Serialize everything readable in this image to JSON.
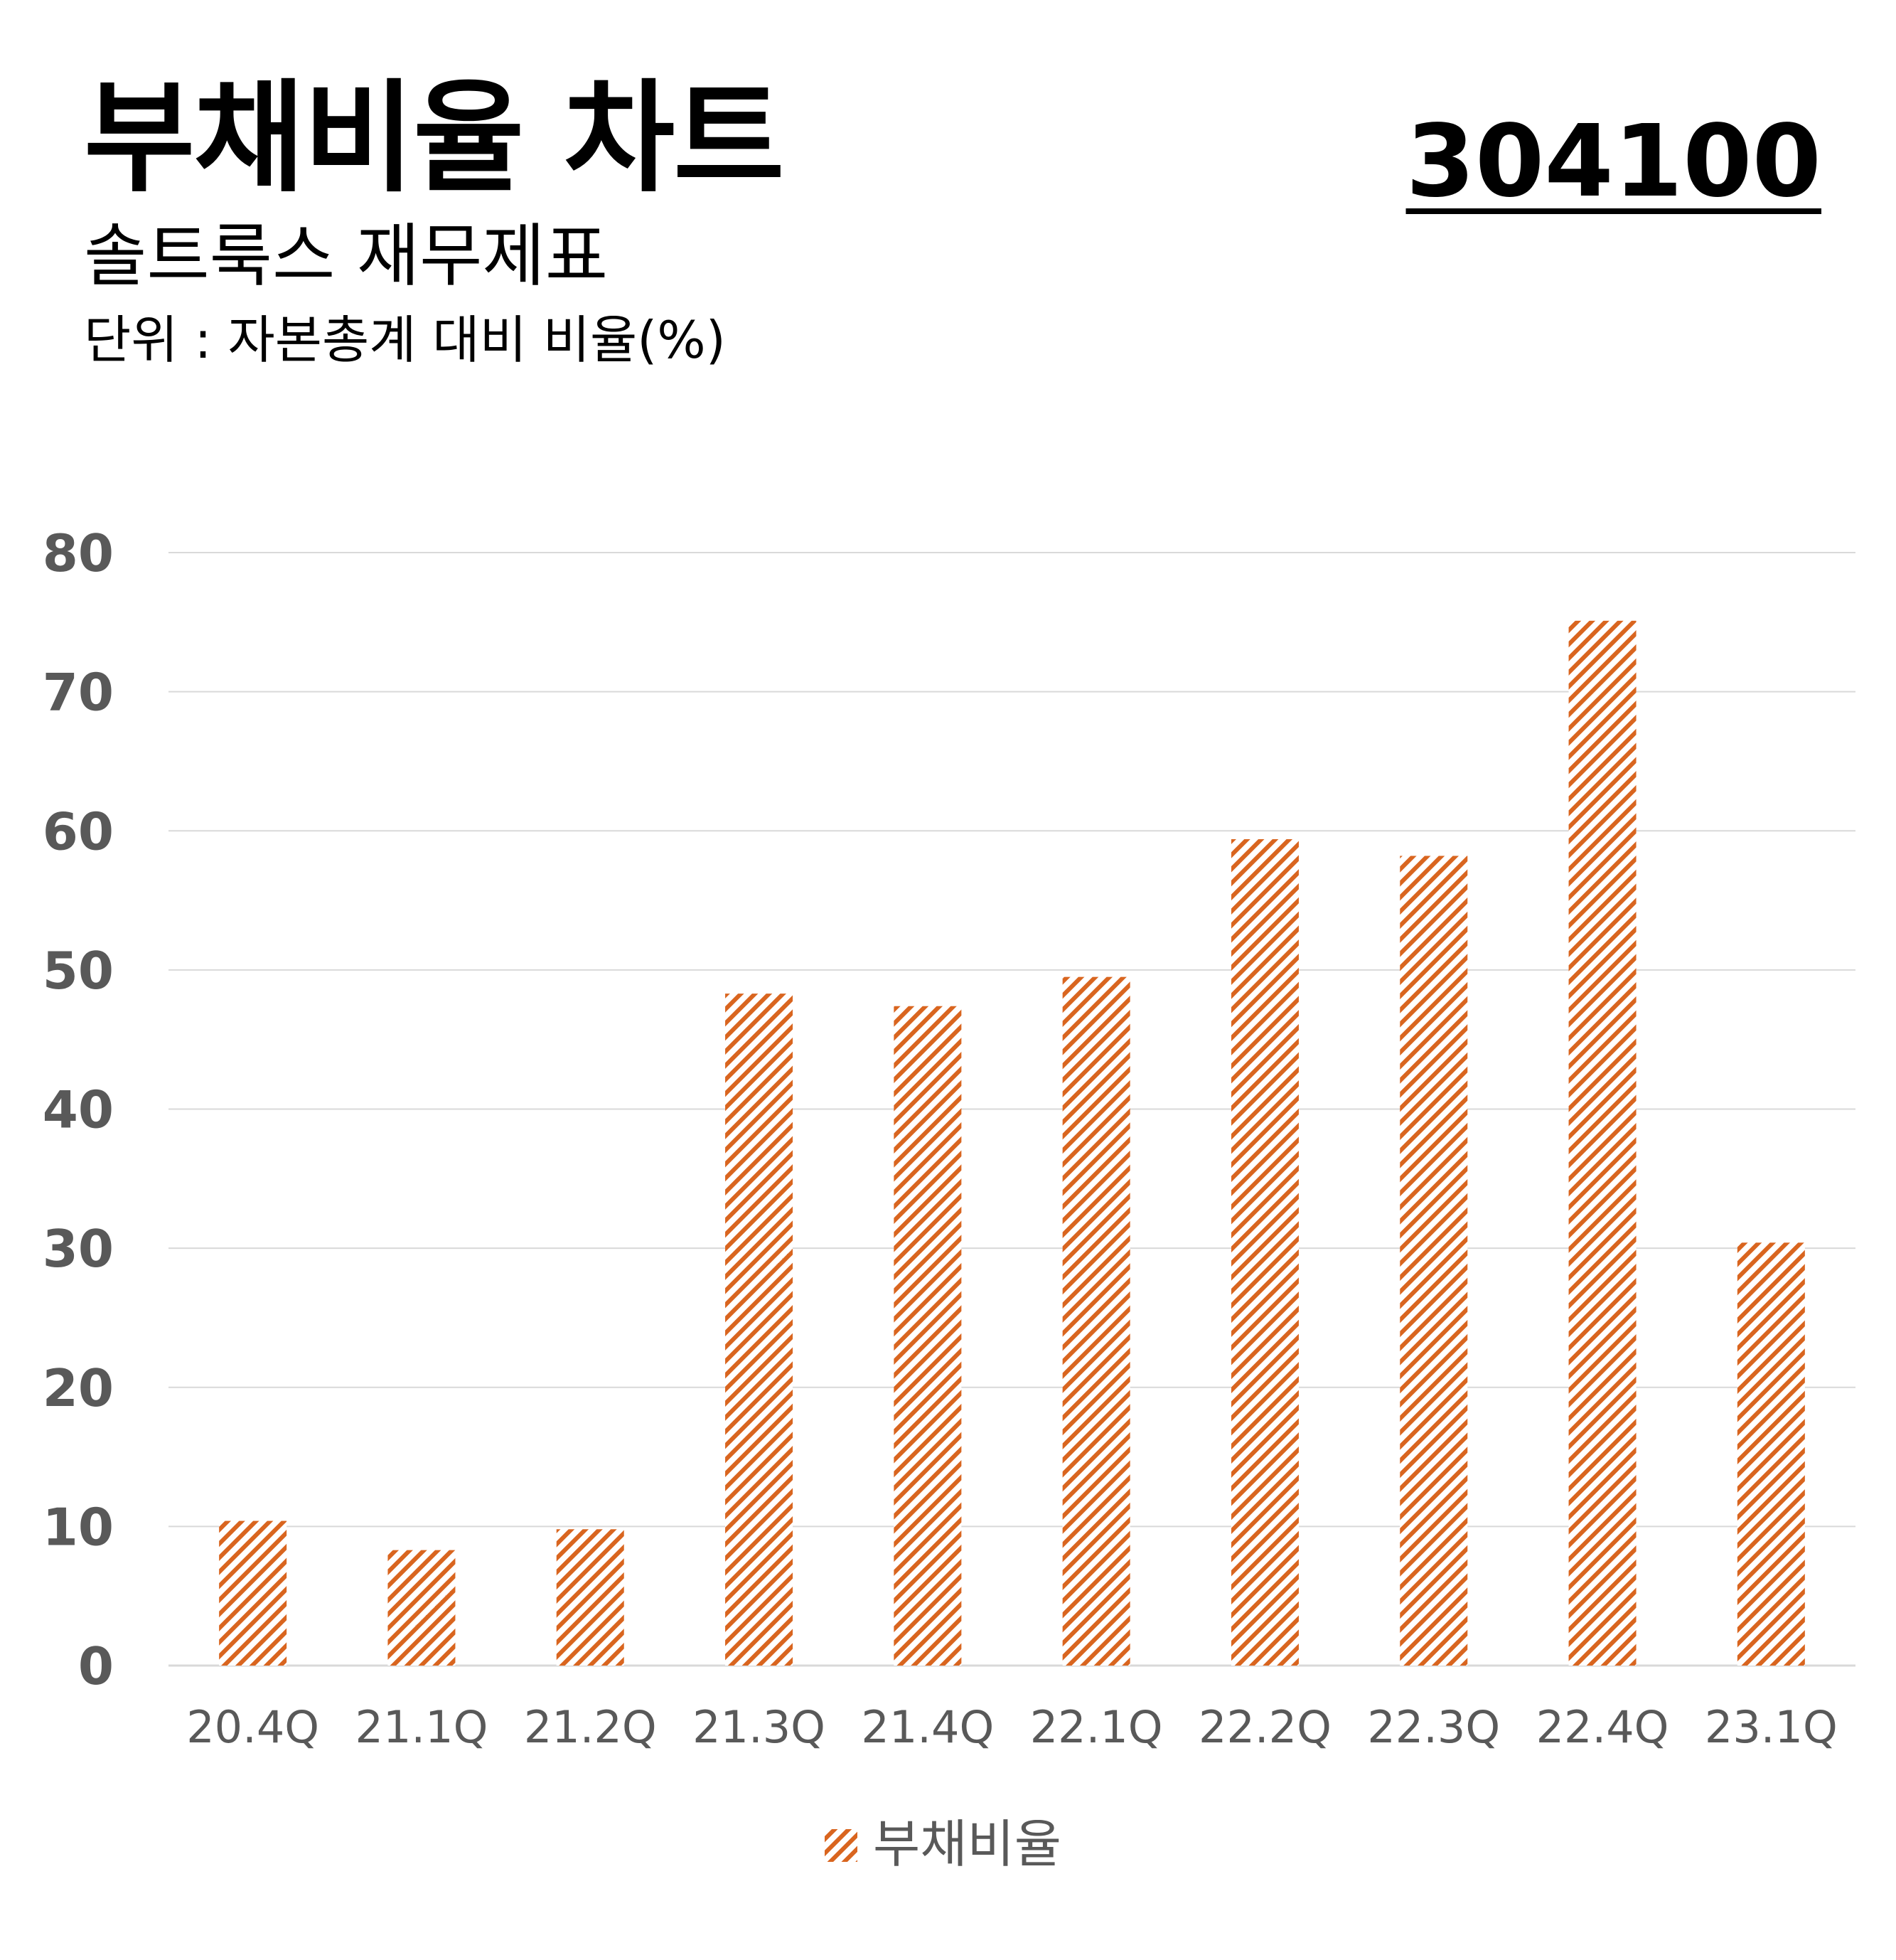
{
  "header": {
    "title": "부채비율 차트",
    "code": "304100",
    "subtitle": "솔트룩스 재무제표",
    "unit": "단위 : 자본총계 대비 비율(%)"
  },
  "colors": {
    "bar": "#d9651f",
    "grid": "#d9d9d9",
    "axis_text": "#595959"
  },
  "chart_data": {
    "type": "bar",
    "title": "부채비율 차트",
    "categories": [
      "20.4Q",
      "21.1Q",
      "21.2Q",
      "21.3Q",
      "21.4Q",
      "22.1Q",
      "22.2Q",
      "22.3Q",
      "22.4Q",
      "23.1Q"
    ],
    "series": [
      {
        "name": "부채비율",
        "values": [
          10.4,
          8.3,
          9.8,
          48.3,
          47.4,
          49.5,
          59.4,
          58.2,
          75.1,
          30.4
        ]
      }
    ],
    "yticks": [
      0,
      10,
      20,
      30,
      40,
      50,
      60,
      70,
      80
    ],
    "ylim": [
      0,
      80
    ],
    "grid": true,
    "legend": "bottom-center",
    "pattern": "diagonal-hatch"
  }
}
